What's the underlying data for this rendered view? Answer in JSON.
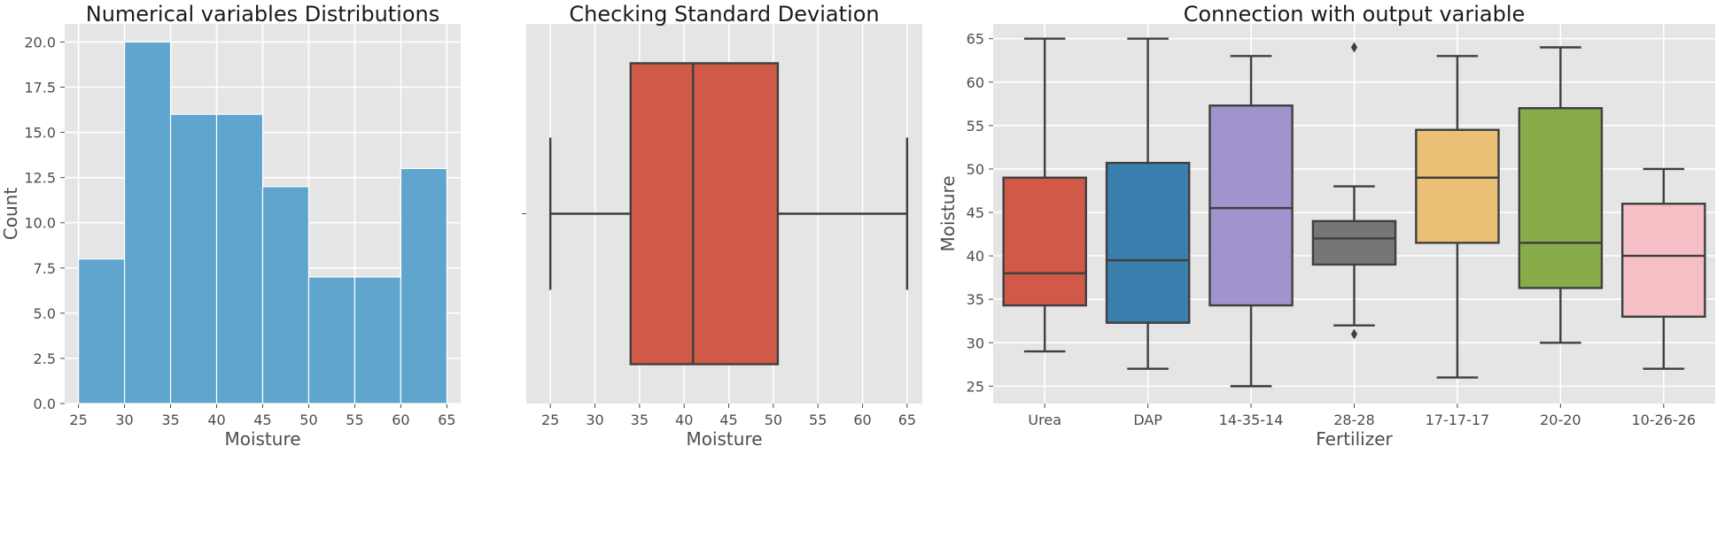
{
  "chart_data": [
    {
      "type": "bar",
      "title": "Numerical variables Distributions",
      "xlabel": "Moisture",
      "ylabel": "Count",
      "color": "#5fa5cd",
      "bins": [
        {
          "start": 25,
          "end": 30,
          "count": 8
        },
        {
          "start": 30,
          "end": 35,
          "count": 20
        },
        {
          "start": 35,
          "end": 40,
          "count": 16
        },
        {
          "start": 40,
          "end": 45,
          "count": 16
        },
        {
          "start": 45,
          "end": 50,
          "count": 12
        },
        {
          "start": 50,
          "end": 55,
          "count": 7
        },
        {
          "start": 55,
          "end": 60,
          "count": 7
        },
        {
          "start": 60,
          "end": 65,
          "count": 13
        }
      ],
      "xlim": [
        23.5,
        66.5
      ],
      "ylim": [
        0,
        21
      ],
      "xticks": [
        "25",
        "30",
        "35",
        "40",
        "45",
        "50",
        "55",
        "60",
        "65"
      ],
      "yticks": [
        "0.0",
        "2.5",
        "5.0",
        "7.5",
        "10.0",
        "12.5",
        "15.0",
        "17.5",
        "20.0"
      ]
    },
    {
      "type": "box",
      "title": "Checking Standard Deviation",
      "xlabel": "Moisture",
      "ylabel": "",
      "color": "#d05a47",
      "box": {
        "whislo": 25,
        "q1": 34,
        "med": 41,
        "q3": 50.5,
        "whishi": 65
      },
      "xlim": [
        22.3,
        66.7
      ],
      "xticks": [
        "25",
        "30",
        "35",
        "40",
        "45",
        "50",
        "55",
        "60",
        "65"
      ]
    },
    {
      "type": "box",
      "title": "Connection with output variable",
      "xlabel": "Fertilizer",
      "ylabel": "Moisture",
      "ylim": [
        23,
        66.7
      ],
      "yticks": [
        "25",
        "30",
        "35",
        "40",
        "45",
        "50",
        "55",
        "60",
        "65"
      ],
      "categories": [
        "Urea",
        "DAP",
        "14-35-14",
        "28-28",
        "17-17-17",
        "20-20",
        "10-26-26"
      ],
      "boxes": [
        {
          "name": "Urea",
          "color": "#d05a47",
          "whislo": 29,
          "q1": 34.3,
          "med": 38,
          "q3": 49,
          "whishi": 65,
          "fliers": []
        },
        {
          "name": "DAP",
          "color": "#3a7fad",
          "whislo": 27,
          "q1": 32.3,
          "med": 39.5,
          "q3": 50.7,
          "whishi": 65,
          "fliers": []
        },
        {
          "name": "14-35-14",
          "color": "#a293cd",
          "whislo": 25,
          "q1": 34.3,
          "med": 45.5,
          "q3": 57.3,
          "whishi": 63,
          "fliers": []
        },
        {
          "name": "28-28",
          "color": "#767676",
          "whislo": 32,
          "q1": 39,
          "med": 42,
          "q3": 44,
          "whishi": 48,
          "fliers": [
            64,
            31
          ]
        },
        {
          "name": "17-17-17",
          "color": "#ecc177",
          "whislo": 26,
          "q1": 41.5,
          "med": 49,
          "q3": 54.5,
          "whishi": 63,
          "fliers": []
        },
        {
          "name": "20-20",
          "color": "#88ac4a",
          "whislo": 30,
          "q1": 36.3,
          "med": 41.5,
          "q3": 57,
          "whishi": 64,
          "fliers": []
        },
        {
          "name": "10-26-26",
          "color": "#f5c0c5",
          "whislo": 27,
          "q1": 33,
          "med": 40,
          "q3": 46,
          "whishi": 50,
          "fliers": []
        }
      ]
    }
  ]
}
